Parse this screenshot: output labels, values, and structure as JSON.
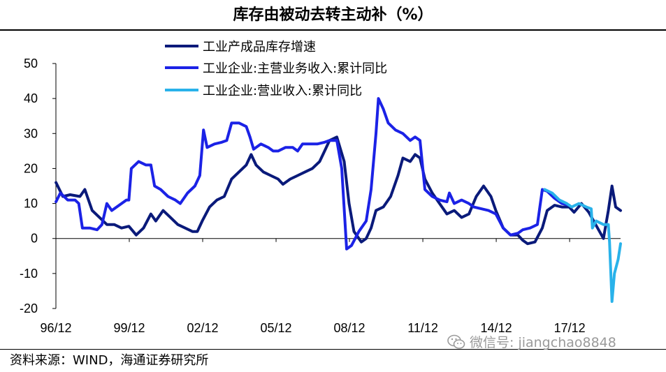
{
  "title": "库存由被动去转主动补（%）",
  "source": "资料来源：WIND，海通证券研究所",
  "watermark": "微信号: jiangchao8848",
  "chart_data": {
    "type": "line",
    "title": "库存由被动去转主动补（%）",
    "xlabel": "",
    "ylabel": "",
    "ylim": [
      -20,
      50
    ],
    "yticks": [
      -20,
      -10,
      0,
      10,
      20,
      30,
      40,
      50
    ],
    "xlim": [
      1996.917,
      2020.0
    ],
    "xticks": [
      {
        "label": "96/12",
        "t": 1996.917
      },
      {
        "label": "99/12",
        "t": 1999.917
      },
      {
        "label": "02/12",
        "t": 2002.917
      },
      {
        "label": "05/12",
        "t": 2005.917
      },
      {
        "label": "08/12",
        "t": 2008.917
      },
      {
        "label": "11/12",
        "t": 2011.917
      },
      {
        "label": "14/12",
        "t": 2014.917
      },
      {
        "label": "17/12",
        "t": 2017.917
      }
    ],
    "grid": false,
    "legend": "top-center",
    "series": [
      {
        "name": "工业产成品库存增速",
        "color": "#0a1a7a",
        "points": [
          [
            1996.92,
            16
          ],
          [
            1997.2,
            12
          ],
          [
            1997.5,
            12.5
          ],
          [
            1997.9,
            12
          ],
          [
            1998.1,
            14
          ],
          [
            1998.4,
            8
          ],
          [
            1998.7,
            6
          ],
          [
            1999.0,
            4
          ],
          [
            1999.3,
            4
          ],
          [
            1999.6,
            3
          ],
          [
            1999.9,
            3.5
          ],
          [
            2000.2,
            1
          ],
          [
            2000.5,
            3
          ],
          [
            2000.8,
            7
          ],
          [
            2001.0,
            5
          ],
          [
            2001.3,
            8
          ],
          [
            2001.6,
            6
          ],
          [
            2001.9,
            4
          ],
          [
            2002.2,
            3
          ],
          [
            2002.5,
            2
          ],
          [
            2002.7,
            2
          ],
          [
            2002.9,
            5
          ],
          [
            2003.2,
            9
          ],
          [
            2003.5,
            11
          ],
          [
            2003.8,
            12
          ],
          [
            2004.1,
            17
          ],
          [
            2004.4,
            19
          ],
          [
            2004.7,
            21
          ],
          [
            2004.9,
            24
          ],
          [
            2005.1,
            21
          ],
          [
            2005.4,
            19
          ],
          [
            2005.7,
            18
          ],
          [
            2006.0,
            17
          ],
          [
            2006.2,
            15.5
          ],
          [
            2006.5,
            17
          ],
          [
            2006.8,
            18
          ],
          [
            2007.1,
            19
          ],
          [
            2007.4,
            20
          ],
          [
            2007.7,
            22
          ],
          [
            2007.9,
            25
          ],
          [
            2008.1,
            28
          ],
          [
            2008.4,
            29
          ],
          [
            2008.7,
            22
          ],
          [
            2008.9,
            10
          ],
          [
            2009.1,
            2
          ],
          [
            2009.4,
            -1
          ],
          [
            2009.6,
            0
          ],
          [
            2009.8,
            3
          ],
          [
            2010.0,
            8
          ],
          [
            2010.3,
            9
          ],
          [
            2010.6,
            12
          ],
          [
            2010.9,
            18
          ],
          [
            2011.1,
            23
          ],
          [
            2011.4,
            22
          ],
          [
            2011.6,
            24
          ],
          [
            2011.8,
            23
          ],
          [
            2012.0,
            17
          ],
          [
            2012.3,
            13
          ],
          [
            2012.6,
            10
          ],
          [
            2012.9,
            7
          ],
          [
            2013.2,
            8
          ],
          [
            2013.5,
            6
          ],
          [
            2013.8,
            7
          ],
          [
            2014.1,
            12
          ],
          [
            2014.4,
            15
          ],
          [
            2014.7,
            12
          ],
          [
            2014.9,
            8
          ],
          [
            2015.2,
            3
          ],
          [
            2015.5,
            1
          ],
          [
            2015.8,
            1
          ],
          [
            2016.0,
            -0.5
          ],
          [
            2016.2,
            -1.5
          ],
          [
            2016.5,
            -1
          ],
          [
            2016.8,
            3
          ],
          [
            2017.0,
            8
          ],
          [
            2017.3,
            9.5
          ],
          [
            2017.6,
            9
          ],
          [
            2017.9,
            9
          ],
          [
            2018.1,
            7.5
          ],
          [
            2018.4,
            10
          ],
          [
            2018.7,
            7.5
          ],
          [
            2018.9,
            5
          ],
          [
            2019.1,
            2.5
          ],
          [
            2019.3,
            0
          ],
          [
            2019.5,
            8
          ],
          [
            2019.65,
            15
          ],
          [
            2019.8,
            9
          ],
          [
            2020.0,
            8
          ]
        ]
      },
      {
        "name": "工业企业:主营业务收入:累计同比",
        "color": "#1b22e6",
        "points": [
          [
            1996.92,
            10.5
          ],
          [
            1997.1,
            13
          ],
          [
            1997.4,
            11
          ],
          [
            1997.7,
            11
          ],
          [
            1997.85,
            10
          ],
          [
            1998.0,
            3
          ],
          [
            1998.3,
            3
          ],
          [
            1998.6,
            2.5
          ],
          [
            1998.8,
            4
          ],
          [
            1999.0,
            10
          ],
          [
            1999.2,
            8
          ],
          [
            1999.5,
            9.5
          ],
          [
            1999.8,
            11
          ],
          [
            1999.9,
            11
          ],
          [
            2000.0,
            20
          ],
          [
            2000.3,
            22
          ],
          [
            2000.6,
            21
          ],
          [
            2000.8,
            21
          ],
          [
            2000.95,
            15
          ],
          [
            2001.2,
            14
          ],
          [
            2001.5,
            12
          ],
          [
            2001.8,
            11
          ],
          [
            2002.0,
            10
          ],
          [
            2002.3,
            13
          ],
          [
            2002.6,
            15
          ],
          [
            2002.8,
            18
          ],
          [
            2002.95,
            31
          ],
          [
            2003.1,
            26
          ],
          [
            2003.4,
            27
          ],
          [
            2003.7,
            27.5
          ],
          [
            2003.9,
            28
          ],
          [
            2004.1,
            33
          ],
          [
            2004.4,
            33
          ],
          [
            2004.7,
            32
          ],
          [
            2004.85,
            29
          ],
          [
            2005.0,
            25.5
          ],
          [
            2005.3,
            27
          ],
          [
            2005.6,
            26
          ],
          [
            2005.8,
            25
          ],
          [
            2006.0,
            25
          ],
          [
            2006.3,
            26
          ],
          [
            2006.6,
            26
          ],
          [
            2006.8,
            25
          ],
          [
            2007.0,
            27
          ],
          [
            2007.3,
            27
          ],
          [
            2007.6,
            27
          ],
          [
            2007.9,
            27.5
          ],
          [
            2008.1,
            28
          ],
          [
            2008.4,
            28
          ],
          [
            2008.6,
            20
          ],
          [
            2008.8,
            -3
          ],
          [
            2009.0,
            -2
          ],
          [
            2009.3,
            2
          ],
          [
            2009.6,
            5
          ],
          [
            2009.8,
            14
          ],
          [
            2010.0,
            30
          ],
          [
            2010.1,
            40
          ],
          [
            2010.3,
            37
          ],
          [
            2010.5,
            33
          ],
          [
            2010.8,
            31
          ],
          [
            2011.1,
            30
          ],
          [
            2011.4,
            28
          ],
          [
            2011.6,
            29
          ],
          [
            2011.8,
            28
          ],
          [
            2012.0,
            14
          ],
          [
            2012.3,
            12
          ],
          [
            2012.6,
            11
          ],
          [
            2012.9,
            10.5
          ],
          [
            2013.0,
            13
          ],
          [
            2013.2,
            10
          ],
          [
            2013.5,
            11
          ],
          [
            2013.8,
            10
          ],
          [
            2014.0,
            9
          ],
          [
            2014.3,
            8.5
          ],
          [
            2014.6,
            8
          ],
          [
            2014.9,
            7
          ],
          [
            2015.2,
            3
          ],
          [
            2015.5,
            1
          ],
          [
            2015.8,
            1.5
          ],
          [
            2016.0,
            2.5
          ],
          [
            2016.3,
            3
          ],
          [
            2016.6,
            4
          ],
          [
            2016.8,
            14
          ],
          [
            2017.0,
            13.5
          ],
          [
            2017.3,
            11.5
          ],
          [
            2017.6,
            10
          ],
          [
            2017.9,
            9.5
          ]
        ]
      },
      {
        "name": "工业企业:营业收入:累计同比",
        "color": "#29b2ea",
        "points": [
          [
            2016.9,
            14
          ],
          [
            2017.2,
            13
          ],
          [
            2017.5,
            11
          ],
          [
            2017.8,
            10
          ],
          [
            2018.0,
            9
          ],
          [
            2018.3,
            10
          ],
          [
            2018.6,
            9
          ],
          [
            2018.8,
            8.5
          ],
          [
            2018.85,
            3
          ],
          [
            2019.0,
            5
          ],
          [
            2019.3,
            4
          ],
          [
            2019.5,
            4
          ],
          [
            2019.55,
            -1
          ],
          [
            2019.65,
            -18
          ],
          [
            2019.75,
            -10
          ],
          [
            2019.9,
            -6
          ],
          [
            2020.0,
            -1.5
          ]
        ]
      }
    ]
  }
}
